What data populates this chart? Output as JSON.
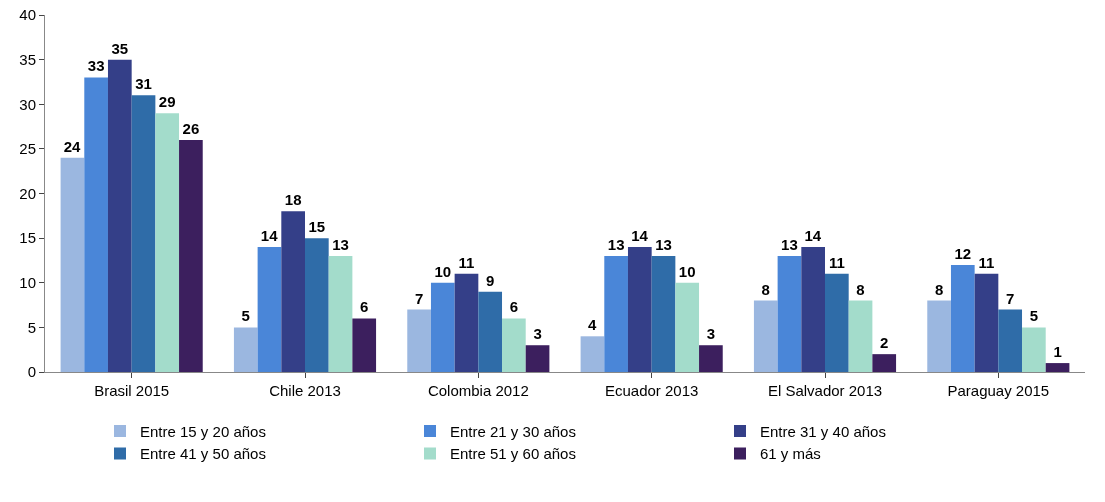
{
  "chart_data": {
    "type": "bar",
    "categories": [
      "Brasil 2015",
      "Chile 2013",
      "Colombia 2012",
      "Ecuador 2013",
      "El Salvador 2013",
      "Paraguay 2015"
    ],
    "series": [
      {
        "name": "Entre 15 y 20 años",
        "color": "#9bb7e0",
        "values": [
          24,
          5,
          7,
          4,
          8,
          8
        ]
      },
      {
        "name": "Entre 21 y 30 años",
        "color": "#4a86d8",
        "values": [
          33,
          14,
          10,
          13,
          13,
          12
        ]
      },
      {
        "name": "Entre 31 y 40 años",
        "color": "#343f88",
        "values": [
          35,
          18,
          11,
          14,
          14,
          11
        ]
      },
      {
        "name": "Entre 41 y 50 años",
        "color": "#2f6ca8",
        "values": [
          31,
          15,
          9,
          13,
          11,
          7
        ]
      },
      {
        "name": "Entre 51 y 60 años",
        "color": "#a3dccb",
        "values": [
          29,
          13,
          6,
          10,
          8,
          5
        ]
      },
      {
        "name": "61 y más",
        "color": "#3c1f5e",
        "values": [
          26,
          6,
          3,
          3,
          2,
          1
        ]
      }
    ],
    "ylim": [
      0,
      40
    ],
    "yticks": [
      0,
      5,
      10,
      15,
      20,
      25,
      30,
      35,
      40
    ],
    "grid": false,
    "legend": "bottom",
    "data_labels": true
  }
}
